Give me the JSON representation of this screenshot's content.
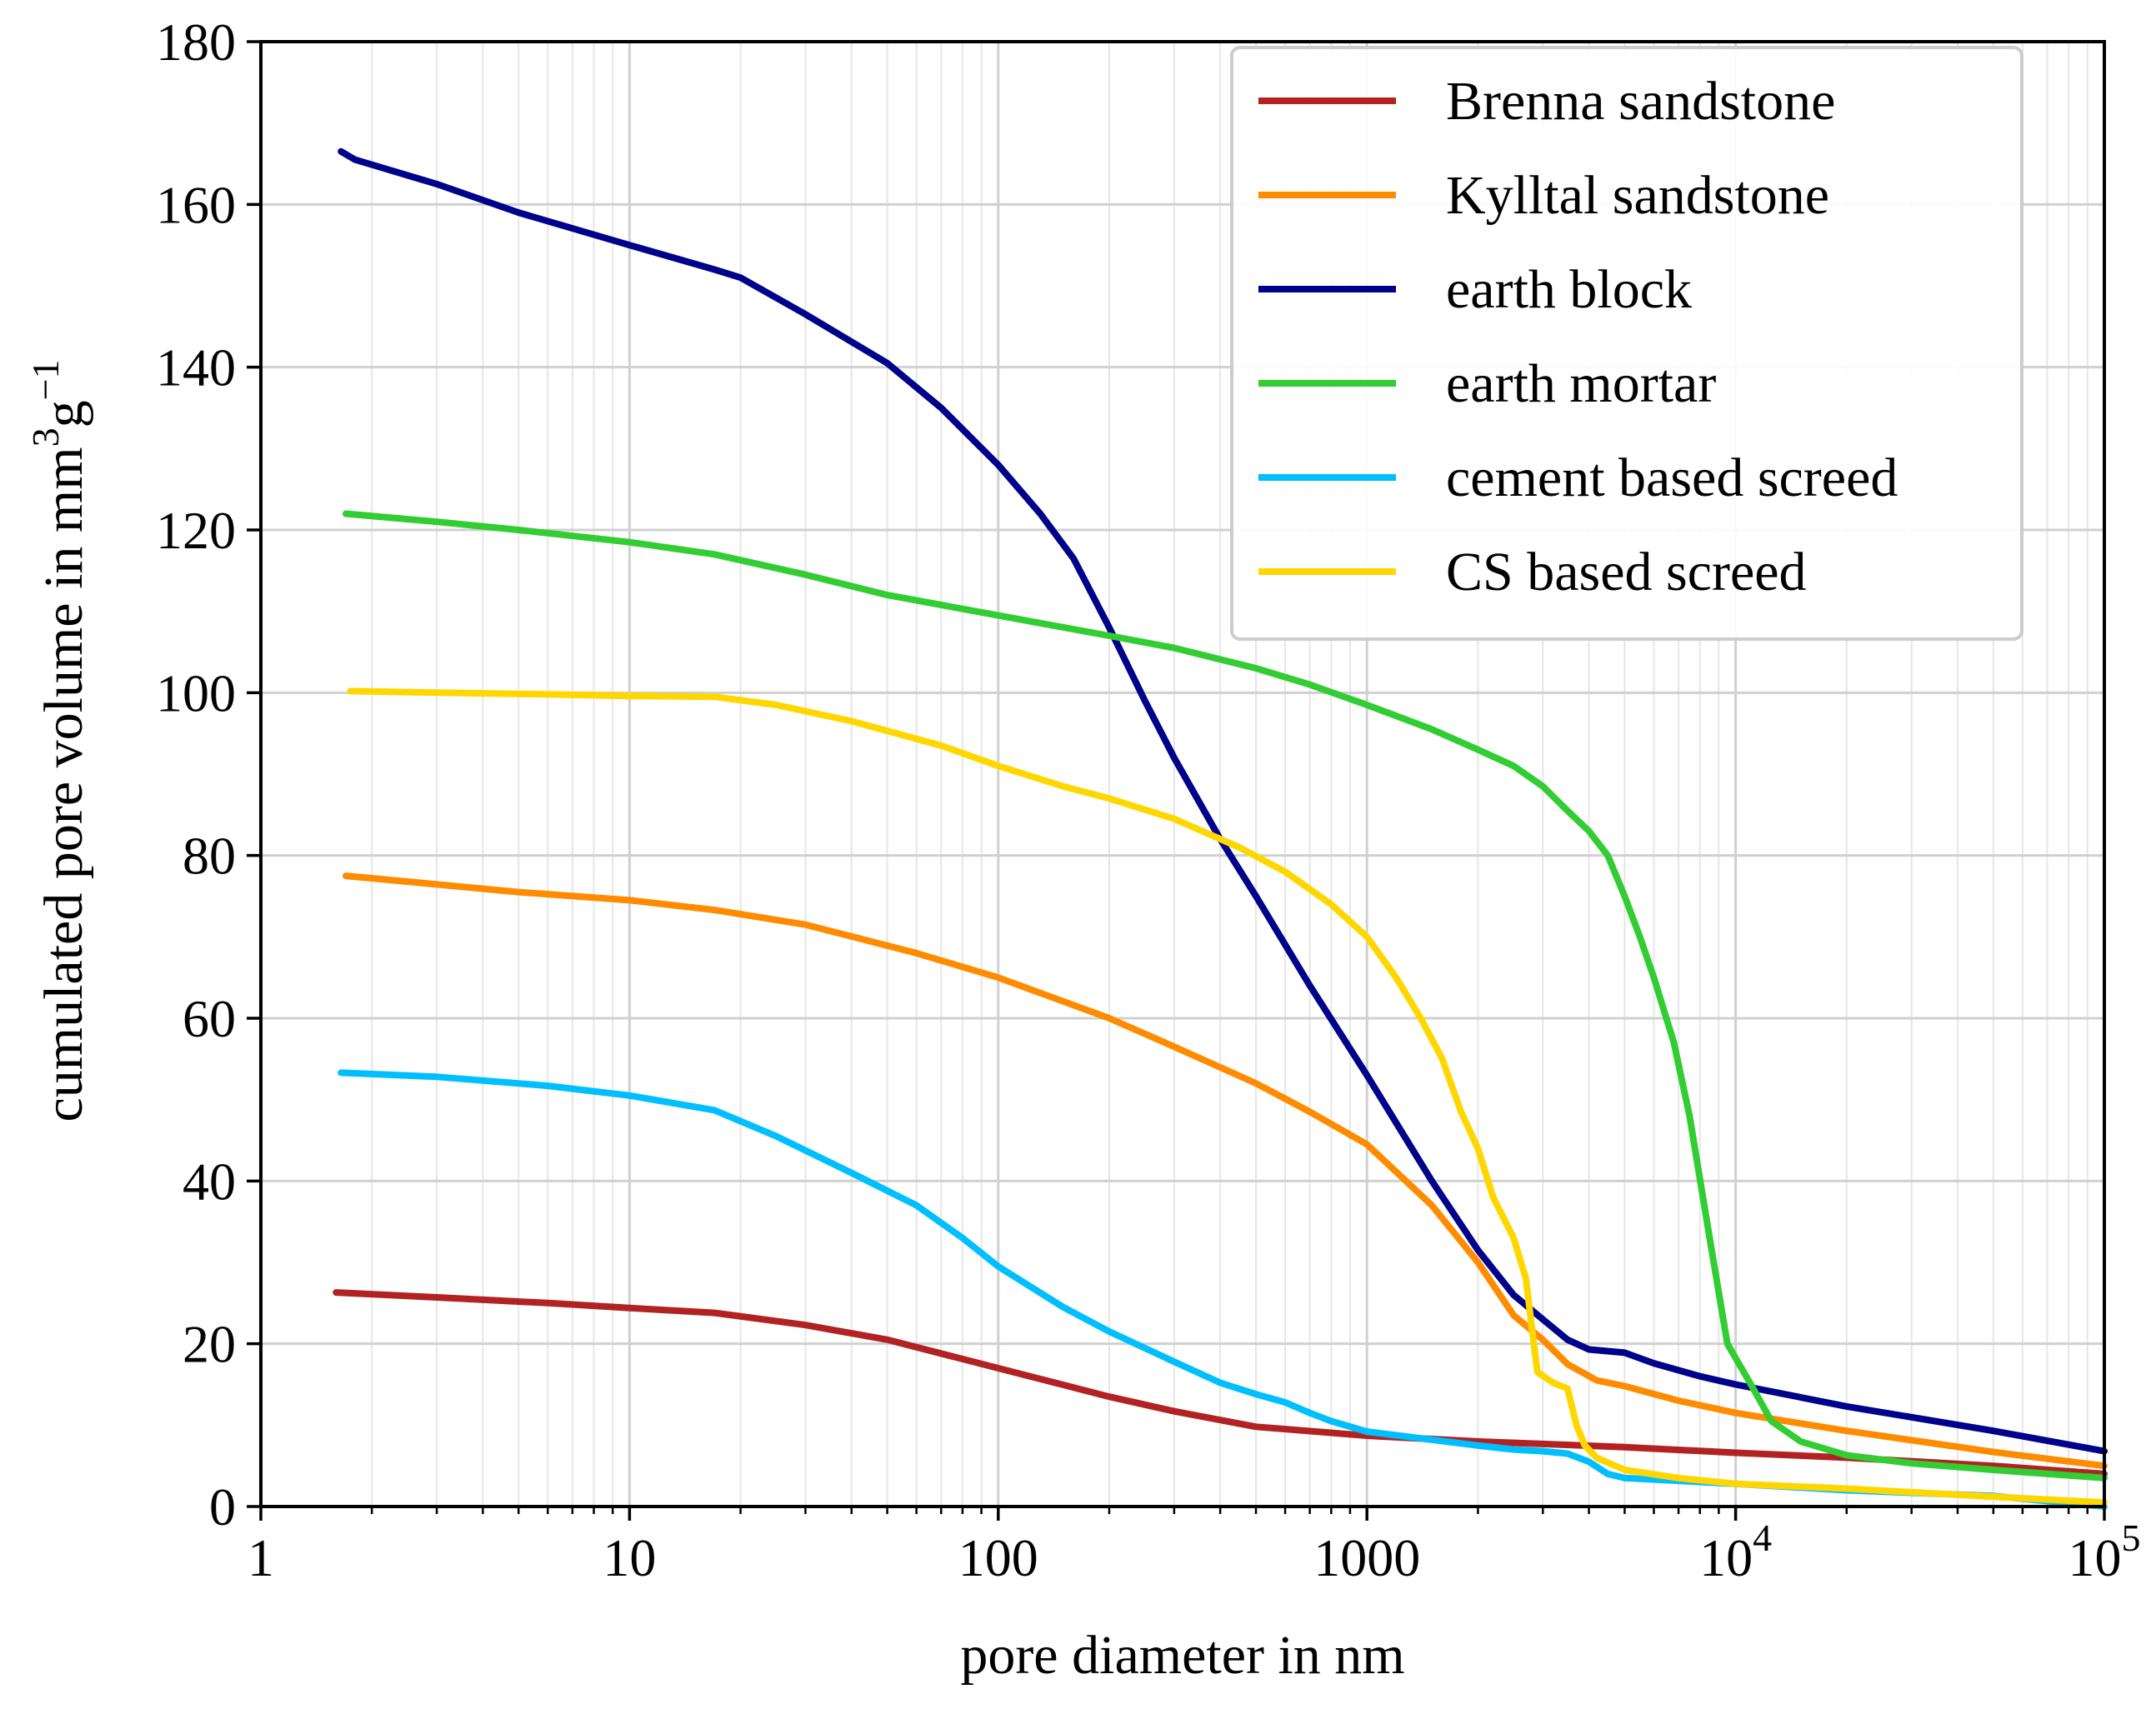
{
  "chart_data": {
    "type": "line",
    "title": "",
    "xlabel": "pore diameter in nm",
    "ylabel": {
      "text": "cumulated pore volume in mm",
      "sup1": "3",
      "mid": "g",
      "sup2": "−1"
    },
    "xscale": "log",
    "xlim": [
      1,
      100000
    ],
    "ylim": [
      0,
      180
    ],
    "grid": true,
    "legend": "top-right",
    "xticks": [
      {
        "value": 1,
        "base": "1",
        "exp": ""
      },
      {
        "value": 10,
        "base": "10",
        "exp": ""
      },
      {
        "value": 100,
        "base": "100",
        "exp": ""
      },
      {
        "value": 1000,
        "base": "1000",
        "exp": ""
      },
      {
        "value": 10000,
        "base": "10",
        "exp": "4"
      },
      {
        "value": 100000,
        "base": "10",
        "exp": "5"
      }
    ],
    "yticks": [
      {
        "value": 0,
        "label": "0"
      },
      {
        "value": 20,
        "label": "20"
      },
      {
        "value": 40,
        "label": "40"
      },
      {
        "value": 60,
        "label": "60"
      },
      {
        "value": 80,
        "label": "80"
      },
      {
        "value": 100,
        "label": "100"
      },
      {
        "value": 120,
        "label": "120"
      },
      {
        "value": 140,
        "label": "140"
      },
      {
        "value": 160,
        "label": "160"
      },
      {
        "value": 180,
        "label": "180"
      }
    ],
    "series": [
      {
        "name": "Brenna sandstone",
        "color": "#b22222",
        "points": [
          [
            1.6,
            26.3
          ],
          [
            3,
            25.7
          ],
          [
            6,
            25
          ],
          [
            10,
            24.4
          ],
          [
            17,
            23.8
          ],
          [
            30,
            22.3
          ],
          [
            50,
            20.5
          ],
          [
            100,
            17
          ],
          [
            200,
            13.5
          ],
          [
            300,
            11.7
          ],
          [
            500,
            9.8
          ],
          [
            1000,
            8.7
          ],
          [
            2000,
            8
          ],
          [
            5000,
            7.3
          ],
          [
            10000,
            6.6
          ],
          [
            20000,
            6
          ],
          [
            50000,
            5
          ],
          [
            100000,
            4
          ]
        ]
      },
      {
        "name": "Kylltal sandstone",
        "color": "#ff8c00",
        "points": [
          [
            1.7,
            77.5
          ],
          [
            5,
            75.5
          ],
          [
            10,
            74.5
          ],
          [
            17,
            73.3
          ],
          [
            30,
            71.5
          ],
          [
            60,
            68
          ],
          [
            100,
            65
          ],
          [
            200,
            60
          ],
          [
            300,
            56.5
          ],
          [
            500,
            52
          ],
          [
            700,
            48.5
          ],
          [
            1000,
            44.5
          ],
          [
            1500,
            37
          ],
          [
            2000,
            30
          ],
          [
            2500,
            23.5
          ],
          [
            3000,
            20.5
          ],
          [
            3500,
            17.5
          ],
          [
            4200,
            15.5
          ],
          [
            5000,
            14.8
          ],
          [
            7000,
            13
          ],
          [
            10000,
            11.5
          ],
          [
            20000,
            9.3
          ],
          [
            50000,
            6.7
          ],
          [
            100000,
            5
          ]
        ]
      },
      {
        "name": "earth block",
        "color": "#00008b",
        "points": [
          [
            1.65,
            166.5
          ],
          [
            1.8,
            165.5
          ],
          [
            3,
            162.5
          ],
          [
            5,
            159
          ],
          [
            10,
            155
          ],
          [
            17,
            152
          ],
          [
            20,
            151
          ],
          [
            30,
            146.5
          ],
          [
            50,
            140.5
          ],
          [
            70,
            135
          ],
          [
            100,
            128
          ],
          [
            130,
            122
          ],
          [
            160,
            116.5
          ],
          [
            200,
            108
          ],
          [
            250,
            99
          ],
          [
            300,
            92
          ],
          [
            400,
            82
          ],
          [
            500,
            75
          ],
          [
            700,
            64
          ],
          [
            1000,
            53
          ],
          [
            1500,
            40
          ],
          [
            2000,
            31.5
          ],
          [
            2500,
            26
          ],
          [
            3000,
            23
          ],
          [
            3500,
            20.5
          ],
          [
            4000,
            19.3
          ],
          [
            5000,
            18.9
          ],
          [
            6000,
            17.6
          ],
          [
            8000,
            16
          ],
          [
            10000,
            15
          ],
          [
            20000,
            12.3
          ],
          [
            50000,
            9.3
          ],
          [
            100000,
            6.8
          ]
        ]
      },
      {
        "name": "earth mortar",
        "color": "#32cd32",
        "points": [
          [
            1.7,
            122
          ],
          [
            3,
            121
          ],
          [
            5,
            120
          ],
          [
            10,
            118.5
          ],
          [
            17,
            117
          ],
          [
            30,
            114.5
          ],
          [
            50,
            112
          ],
          [
            100,
            109.5
          ],
          [
            200,
            107
          ],
          [
            300,
            105.5
          ],
          [
            500,
            103
          ],
          [
            700,
            101
          ],
          [
            1000,
            98.5
          ],
          [
            1500,
            95.5
          ],
          [
            2000,
            93
          ],
          [
            2500,
            91
          ],
          [
            3000,
            88.5
          ],
          [
            3500,
            85.5
          ],
          [
            4000,
            83
          ],
          [
            4500,
            80
          ],
          [
            5000,
            75
          ],
          [
            5500,
            70
          ],
          [
            6000,
            65
          ],
          [
            6800,
            57
          ],
          [
            7500,
            48
          ],
          [
            8500,
            33
          ],
          [
            9500,
            20
          ],
          [
            11000,
            15
          ],
          [
            12500,
            10.5
          ],
          [
            15000,
            8
          ],
          [
            20000,
            6.3
          ],
          [
            30000,
            5.3
          ],
          [
            50000,
            4.5
          ],
          [
            100000,
            3.5
          ]
        ]
      },
      {
        "name": "cement based screed",
        "color": "#00bfff",
        "points": [
          [
            1.65,
            53.3
          ],
          [
            3,
            52.8
          ],
          [
            6,
            51.7
          ],
          [
            10,
            50.5
          ],
          [
            17,
            48.7
          ],
          [
            25,
            45.5
          ],
          [
            40,
            41
          ],
          [
            60,
            37
          ],
          [
            80,
            33
          ],
          [
            100,
            29.5
          ],
          [
            150,
            24.5
          ],
          [
            200,
            21.5
          ],
          [
            300,
            17.8
          ],
          [
            400,
            15.2
          ],
          [
            500,
            13.8
          ],
          [
            600,
            12.8
          ],
          [
            700,
            11.5
          ],
          [
            800,
            10.5
          ],
          [
            1000,
            9.2
          ],
          [
            1500,
            8.2
          ],
          [
            2000,
            7.5
          ],
          [
            2500,
            7
          ],
          [
            3000,
            6.8
          ],
          [
            3500,
            6.5
          ],
          [
            4000,
            5.5
          ],
          [
            4500,
            4
          ],
          [
            5000,
            3.5
          ],
          [
            10000,
            2.8
          ],
          [
            20000,
            2
          ],
          [
            50000,
            1.3
          ],
          [
            100000,
            0
          ]
        ]
      },
      {
        "name": "CS based screed",
        "color": "#ffd700",
        "points": [
          [
            1.75,
            100.2
          ],
          [
            3,
            100
          ],
          [
            6,
            99.8
          ],
          [
            10,
            99.6
          ],
          [
            17,
            99.5
          ],
          [
            25,
            98.5
          ],
          [
            40,
            96.5
          ],
          [
            70,
            93.5
          ],
          [
            100,
            91
          ],
          [
            150,
            88.5
          ],
          [
            200,
            87
          ],
          [
            300,
            84.5
          ],
          [
            450,
            81
          ],
          [
            600,
            78
          ],
          [
            800,
            74
          ],
          [
            1000,
            70
          ],
          [
            1200,
            65
          ],
          [
            1400,
            60
          ],
          [
            1600,
            55
          ],
          [
            1800,
            48.5
          ],
          [
            2000,
            44
          ],
          [
            2200,
            38
          ],
          [
            2500,
            33
          ],
          [
            2700,
            28
          ],
          [
            2800,
            22
          ],
          [
            2900,
            16.5
          ],
          [
            3200,
            15.2
          ],
          [
            3500,
            14.5
          ],
          [
            3700,
            10
          ],
          [
            3900,
            7.5
          ],
          [
            4200,
            6
          ],
          [
            5000,
            4.5
          ],
          [
            7000,
            3.5
          ],
          [
            10000,
            2.8
          ],
          [
            20000,
            2.2
          ],
          [
            50000,
            1.2
          ],
          [
            100000,
            0.5
          ]
        ]
      }
    ]
  }
}
